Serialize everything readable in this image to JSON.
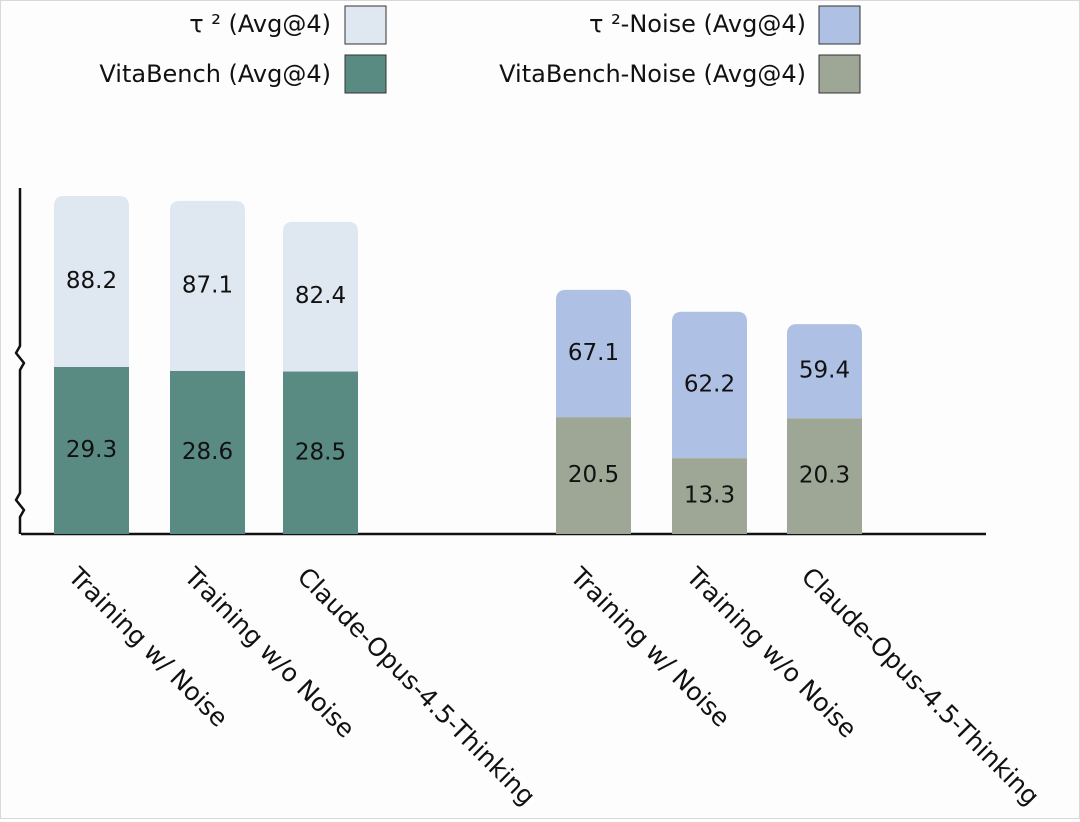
{
  "chart_data": {
    "type": "bar",
    "stacked": true,
    "broken_y_axis": true,
    "y_axis_labels": false,
    "grid": false,
    "legend_position": "top",
    "groups": [
      {
        "categories": [
          "Training w/ Noise",
          "Training w/o Noise",
          "Claude-Opus-4.5-Thinking"
        ],
        "series": [
          {
            "name": "τ ² (Avg@4)",
            "values": [
              88.2,
              87.1,
              82.4
            ],
            "color": "#dfe7f1",
            "position": "top"
          },
          {
            "name": "VitaBench (Avg@4)",
            "values": [
              29.3,
              28.6,
              28.5
            ],
            "color": "#5a8b83",
            "position": "bottom"
          }
        ]
      },
      {
        "categories": [
          "Training w/ Noise",
          "Training w/o Noise",
          "Claude-Opus-4.5-Thinking"
        ],
        "series": [
          {
            "name": "τ ²-Noise (Avg@4)",
            "values": [
              67.1,
              62.2,
              59.4
            ],
            "color": "#aec0e4",
            "position": "top"
          },
          {
            "name": "VitaBench-Noise (Avg@4)",
            "values": [
              20.5,
              13.3,
              20.3
            ],
            "color": "#9ea795",
            "position": "bottom"
          }
        ]
      }
    ]
  }
}
